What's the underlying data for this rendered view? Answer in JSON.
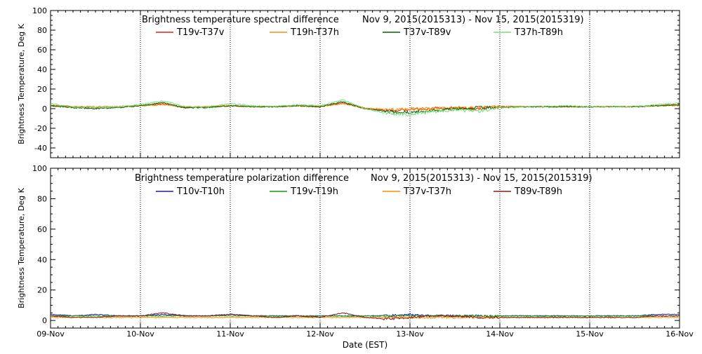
{
  "chart_data": [
    {
      "type": "line",
      "title": "Brightness temperature spectral difference",
      "date_range": "Nov  9, 2015(2015313) - Nov 15, 2015(2015319)",
      "ylabel": "Brightness Temperature, Deg K",
      "ylim": [
        -50,
        100
      ],
      "yticks": [
        -40,
        -20,
        0,
        20,
        40,
        60,
        80,
        100
      ],
      "xlim": [
        0,
        7
      ],
      "xticks": [
        0,
        1,
        2,
        3,
        4,
        5,
        6,
        7
      ],
      "xtick_labels": [
        "",
        "",
        "",
        "",
        "",
        "",
        "",
        ""
      ],
      "grid": "vertical dotted at day boundaries",
      "legend_position": "top",
      "series": [
        {
          "name": "T19v-T37v",
          "color": "#e02010",
          "x": [
            0,
            0.25,
            0.5,
            0.75,
            1,
            1.25,
            1.5,
            1.75,
            2,
            2.25,
            2.5,
            2.75,
            3,
            3.25,
            3.5,
            3.75,
            4,
            4.25,
            4.5,
            4.75,
            5,
            5.25,
            5.5,
            5.75,
            6,
            6.25,
            6.5,
            6.75,
            7
          ],
          "values": [
            3,
            2,
            1,
            2,
            3,
            5,
            1,
            2,
            3,
            2,
            2,
            3,
            2,
            6,
            0,
            -2,
            -1,
            0,
            1,
            0,
            2,
            2,
            2,
            2,
            2,
            2,
            2,
            3,
            4
          ]
        },
        {
          "name": "T19h-T37h",
          "color": "#ff8c00",
          "x": [
            0,
            0.25,
            0.5,
            0.75,
            1,
            1.25,
            1.5,
            1.75,
            2,
            2.25,
            2.5,
            2.75,
            3,
            3.25,
            3.5,
            3.75,
            4,
            4.25,
            4.5,
            4.75,
            5,
            5.25,
            5.5,
            5.75,
            6,
            6.25,
            6.5,
            6.75,
            7
          ],
          "values": [
            3,
            2,
            2,
            2,
            3,
            4,
            2,
            2,
            3,
            2,
            2,
            3,
            2,
            5,
            1,
            -1,
            0,
            0,
            1,
            1,
            2,
            2,
            2,
            2,
            2,
            2,
            2,
            3,
            3
          ]
        },
        {
          "name": "T37v-T89v",
          "color": "#006400",
          "x": [
            0,
            0.25,
            0.5,
            0.75,
            1,
            1.25,
            1.5,
            1.75,
            2,
            2.25,
            2.5,
            2.75,
            3,
            3.25,
            3.5,
            3.75,
            4,
            4.25,
            4.5,
            4.75,
            5,
            5.25,
            5.5,
            5.75,
            6,
            6.25,
            6.5,
            6.75,
            7
          ],
          "values": [
            3,
            1,
            0,
            1,
            3,
            6,
            1,
            1,
            3,
            2,
            2,
            3,
            2,
            7,
            0,
            -3,
            -4,
            -2,
            0,
            1,
            1,
            2,
            2,
            2,
            2,
            2,
            2,
            3,
            4
          ]
        },
        {
          "name": "T37h-T89h",
          "color": "#70e070",
          "x": [
            0,
            0.25,
            0.5,
            0.75,
            1,
            1.25,
            1.5,
            1.75,
            2,
            2.25,
            2.5,
            2.75,
            3,
            3.25,
            3.5,
            3.75,
            4,
            4.25,
            4.5,
            4.75,
            5,
            5.25,
            5.5,
            5.75,
            6,
            6.25,
            6.5,
            6.75,
            7
          ],
          "values": [
            5,
            2,
            1,
            2,
            4,
            8,
            2,
            2,
            5,
            3,
            2,
            4,
            3,
            9,
            0,
            -5,
            -6,
            -3,
            -1,
            -3,
            1,
            2,
            2,
            3,
            2,
            2,
            2,
            4,
            6
          ]
        }
      ]
    },
    {
      "type": "line",
      "title": "Brightness temperature polarization difference",
      "date_range": "Nov  9, 2015(2015313) - Nov 15, 2015(2015319)",
      "ylabel": "Brightness Temperature, Deg K",
      "xlabel": "Date (EST)",
      "ylim": [
        -5,
        100
      ],
      "yticks": [
        0,
        20,
        40,
        60,
        80,
        100
      ],
      "xlim": [
        0,
        7
      ],
      "xticks": [
        0,
        1,
        2,
        3,
        4,
        5,
        6,
        7
      ],
      "xtick_labels": [
        "09-Nov",
        "10-Nov",
        "11-Nov",
        "12-Nov",
        "13-Nov",
        "14-Nov",
        "15-Nov",
        "16-Nov"
      ],
      "grid": "vertical dotted at day boundaries",
      "legend_position": "top",
      "series": [
        {
          "name": "T10v-T10h",
          "color": "#1a1aa0",
          "x": [
            0,
            0.25,
            0.5,
            0.75,
            1,
            1.25,
            1.5,
            1.75,
            2,
            2.25,
            2.5,
            2.75,
            3,
            3.25,
            3.5,
            3.75,
            4,
            4.25,
            4.5,
            4.75,
            5,
            5.25,
            5.5,
            5.75,
            6,
            6.25,
            6.5,
            6.75,
            7
          ],
          "values": [
            4,
            3,
            4,
            3,
            3,
            4,
            3,
            3,
            4,
            3,
            3,
            3,
            3,
            3,
            3,
            3,
            4,
            3,
            3,
            3,
            3,
            3,
            3,
            3,
            3,
            3,
            3,
            4,
            4
          ]
        },
        {
          "name": "T19v-T19h",
          "color": "#10a010",
          "x": [
            0,
            0.25,
            0.5,
            0.75,
            1,
            1.25,
            1.5,
            1.75,
            2,
            2.25,
            2.5,
            2.75,
            3,
            3.25,
            3.5,
            3.75,
            4,
            4.25,
            4.5,
            4.75,
            5,
            5.25,
            5.5,
            5.75,
            6,
            6.25,
            6.5,
            6.75,
            7
          ],
          "values": [
            3,
            3,
            3,
            3,
            3,
            3,
            3,
            3,
            3,
            3,
            3,
            3,
            3,
            3,
            3,
            3,
            3,
            3,
            3,
            3,
            3,
            3,
            3,
            3,
            3,
            3,
            3,
            3,
            3
          ]
        },
        {
          "name": "T37v-T37h",
          "color": "#ff8c00",
          "x": [
            0,
            0.25,
            0.5,
            0.75,
            1,
            1.25,
            1.5,
            1.75,
            2,
            2.25,
            2.5,
            2.75,
            3,
            3.25,
            3.5,
            3.75,
            4,
            4.25,
            4.5,
            4.75,
            5,
            5.25,
            5.5,
            5.75,
            6,
            6.25,
            6.5,
            6.75,
            7
          ],
          "values": [
            2,
            2,
            2,
            2,
            2,
            2,
            2,
            2,
            2,
            2,
            2,
            2,
            2,
            2,
            2,
            2,
            2,
            2,
            2,
            2,
            2,
            2,
            2,
            2,
            2,
            2,
            2,
            2,
            2
          ]
        },
        {
          "name": "T89v-T89h",
          "color": "#8b1a1a",
          "x": [
            0,
            0.25,
            0.5,
            0.75,
            1,
            1.25,
            1.5,
            1.75,
            2,
            2.25,
            2.5,
            2.75,
            3,
            3.25,
            3.5,
            3.75,
            4,
            4.25,
            4.5,
            4.75,
            5,
            5.25,
            5.5,
            5.75,
            6,
            6.25,
            6.5,
            6.75,
            7
          ],
          "values": [
            3,
            2,
            2,
            3,
            3,
            5,
            3,
            3,
            4,
            3,
            2,
            3,
            2,
            5,
            2,
            1,
            2,
            3,
            3,
            2,
            2,
            2,
            2,
            2,
            2,
            2,
            2,
            3,
            3
          ]
        }
      ]
    }
  ]
}
